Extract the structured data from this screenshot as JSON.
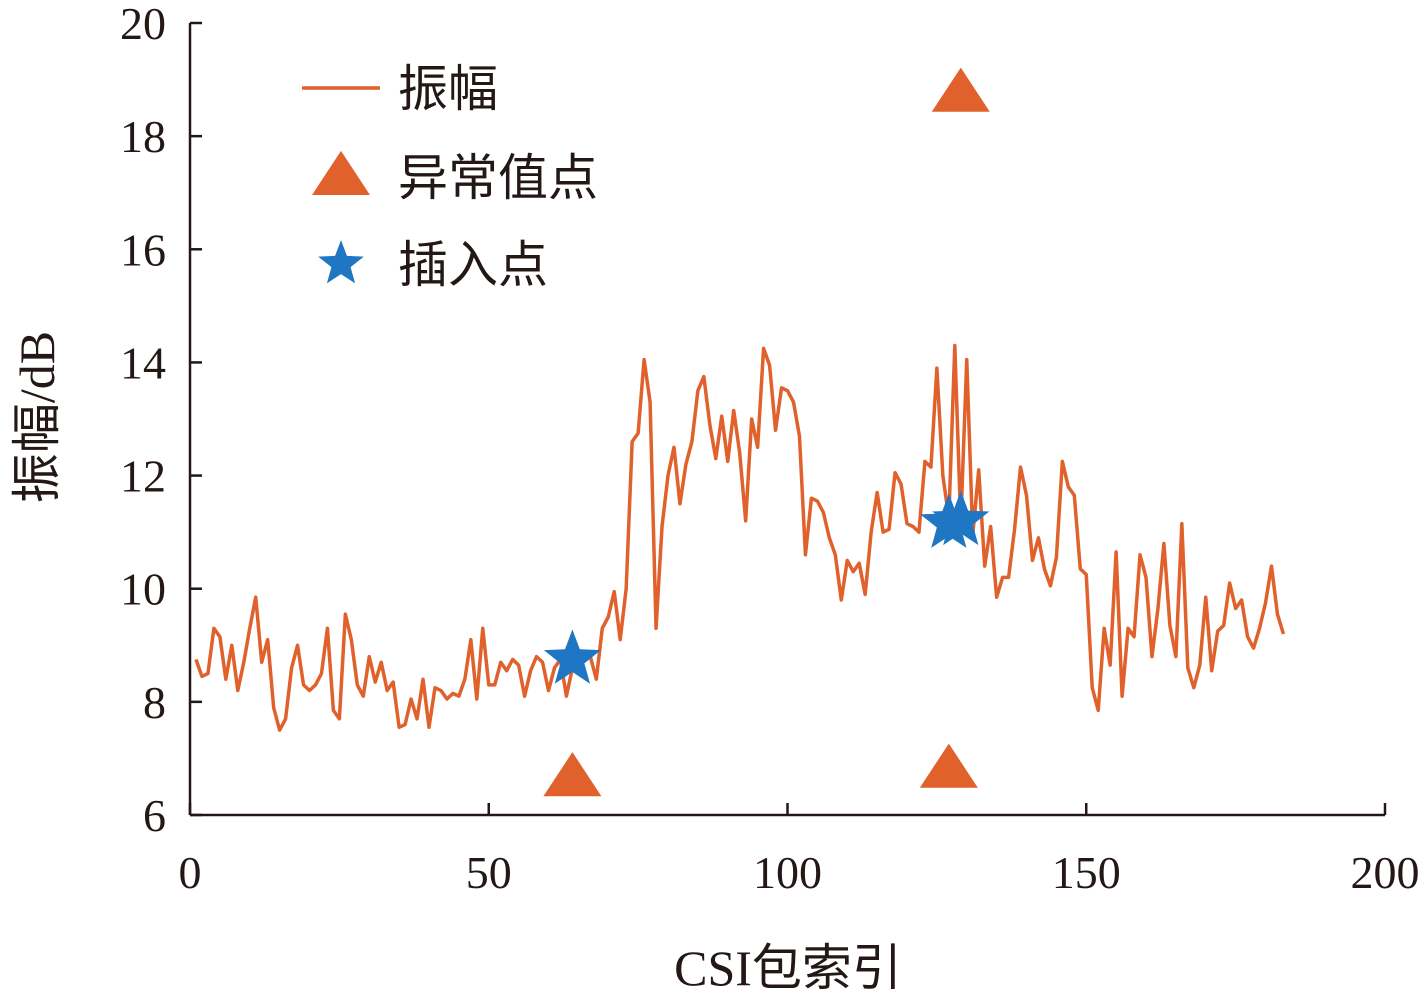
{
  "chart_data": {
    "type": "line",
    "title": "",
    "xlabel": "CSI包索引",
    "ylabel": "振幅/dB",
    "xlim": [
      0,
      200
    ],
    "ylim": [
      6,
      20
    ],
    "xticks": [
      0,
      50,
      100,
      150,
      200
    ],
    "yticks": [
      6,
      8,
      10,
      12,
      14,
      16,
      18,
      20
    ],
    "grid": false,
    "legend_position": "top-left",
    "series": [
      {
        "name": "振幅",
        "kind": "line",
        "color": "#e0612b",
        "x": [
          1,
          2,
          3,
          4,
          5,
          6,
          7,
          8,
          9,
          10,
          11,
          12,
          13,
          14,
          15,
          16,
          17,
          18,
          19,
          20,
          21,
          22,
          23,
          24,
          25,
          26,
          27,
          28,
          29,
          30,
          31,
          32,
          33,
          34,
          35,
          36,
          37,
          38,
          39,
          40,
          41,
          42,
          43,
          44,
          45,
          46,
          47,
          48,
          49,
          50,
          51,
          52,
          53,
          54,
          55,
          56,
          57,
          58,
          59,
          60,
          61,
          62,
          63,
          64,
          65,
          66,
          67,
          68,
          69,
          70,
          71,
          72,
          73,
          74,
          75,
          76,
          77,
          78,
          79,
          80,
          81,
          82,
          83,
          84,
          85,
          86,
          87,
          88,
          89,
          90,
          91,
          92,
          93,
          94,
          95,
          96,
          97,
          98,
          99,
          100,
          101,
          102,
          103,
          104,
          105,
          106,
          107,
          108,
          109,
          110,
          111,
          112,
          113,
          114,
          115,
          116,
          117,
          118,
          119,
          120,
          121,
          122,
          123,
          124,
          125,
          126,
          127,
          128,
          129,
          130,
          131,
          132,
          133,
          134,
          135,
          136,
          137,
          138,
          139,
          140,
          141,
          142,
          143,
          144,
          145,
          146,
          147,
          148,
          149,
          150,
          151,
          152,
          153,
          154,
          155,
          156,
          157,
          158,
          159,
          160,
          161,
          162,
          163,
          164,
          165,
          166,
          167,
          168,
          169,
          170,
          171,
          172,
          173,
          174,
          175,
          176,
          177,
          178,
          179,
          180,
          181,
          182,
          183
        ],
        "y": [
          8.75,
          8.45,
          8.5,
          9.3,
          9.15,
          8.4,
          9.0,
          8.2,
          8.7,
          9.3,
          9.85,
          8.7,
          9.1,
          7.9,
          7.5,
          7.7,
          8.6,
          9.0,
          8.3,
          8.2,
          8.3,
          8.5,
          9.3,
          7.85,
          7.7,
          9.55,
          9.1,
          8.3,
          8.1,
          8.8,
          8.35,
          8.7,
          8.2,
          8.35,
          7.55,
          7.6,
          8.05,
          7.7,
          8.4,
          7.55,
          8.25,
          8.2,
          8.05,
          8.15,
          8.1,
          8.4,
          9.1,
          8.05,
          9.3,
          8.3,
          8.3,
          8.7,
          8.55,
          8.75,
          8.65,
          8.1,
          8.55,
          8.8,
          8.7,
          8.2,
          8.6,
          8.75,
          8.1,
          8.6,
          8.75,
          8.8,
          8.8,
          8.4,
          9.3,
          9.5,
          9.95,
          9.1,
          10.0,
          12.6,
          12.75,
          14.05,
          13.3,
          9.3,
          11.1,
          12.0,
          12.5,
          11.5,
          12.2,
          12.6,
          13.5,
          13.75,
          12.9,
          12.3,
          13.05,
          12.25,
          13.15,
          12.4,
          11.2,
          13.0,
          12.5,
          14.25,
          13.95,
          12.8,
          13.55,
          13.5,
          13.3,
          12.7,
          10.6,
          11.6,
          11.55,
          11.35,
          10.9,
          10.6,
          9.8,
          10.5,
          10.3,
          10.45,
          9.9,
          11.0,
          11.7,
          11.0,
          11.05,
          12.05,
          11.85,
          11.15,
          11.1,
          11.0,
          12.25,
          12.15,
          13.9,
          12.0,
          11.25,
          14.3,
          11.15,
          14.05,
          10.95,
          12.1,
          10.4,
          11.1,
          9.85,
          10.2,
          10.2,
          11.05,
          12.15,
          11.65,
          10.5,
          10.9,
          10.35,
          10.05,
          10.55,
          12.25,
          11.8,
          11.65,
          10.35,
          10.25,
          8.25,
          7.85,
          9.3,
          8.65,
          10.65,
          8.1,
          9.3,
          9.15,
          10.6,
          10.2,
          8.8,
          9.65,
          10.8,
          9.35,
          8.8,
          11.15,
          8.6,
          8.25,
          8.65,
          9.85,
          8.55,
          9.25,
          9.35,
          10.1,
          9.65,
          9.8,
          9.15,
          8.95,
          9.3,
          9.75,
          10.4,
          9.55,
          9.2
        ]
      },
      {
        "name": "异常值点",
        "kind": "marker",
        "marker": "triangle",
        "color": "#e0612b",
        "x": [
          64,
          127,
          129
        ],
        "y": [
          6.65,
          6.8,
          18.75
        ]
      },
      {
        "name": "插入点",
        "kind": "marker",
        "marker": "star",
        "color": "#1f77c4",
        "x": [
          64,
          127,
          129
        ],
        "y": [
          8.75,
          11.15,
          11.2
        ]
      }
    ]
  }
}
